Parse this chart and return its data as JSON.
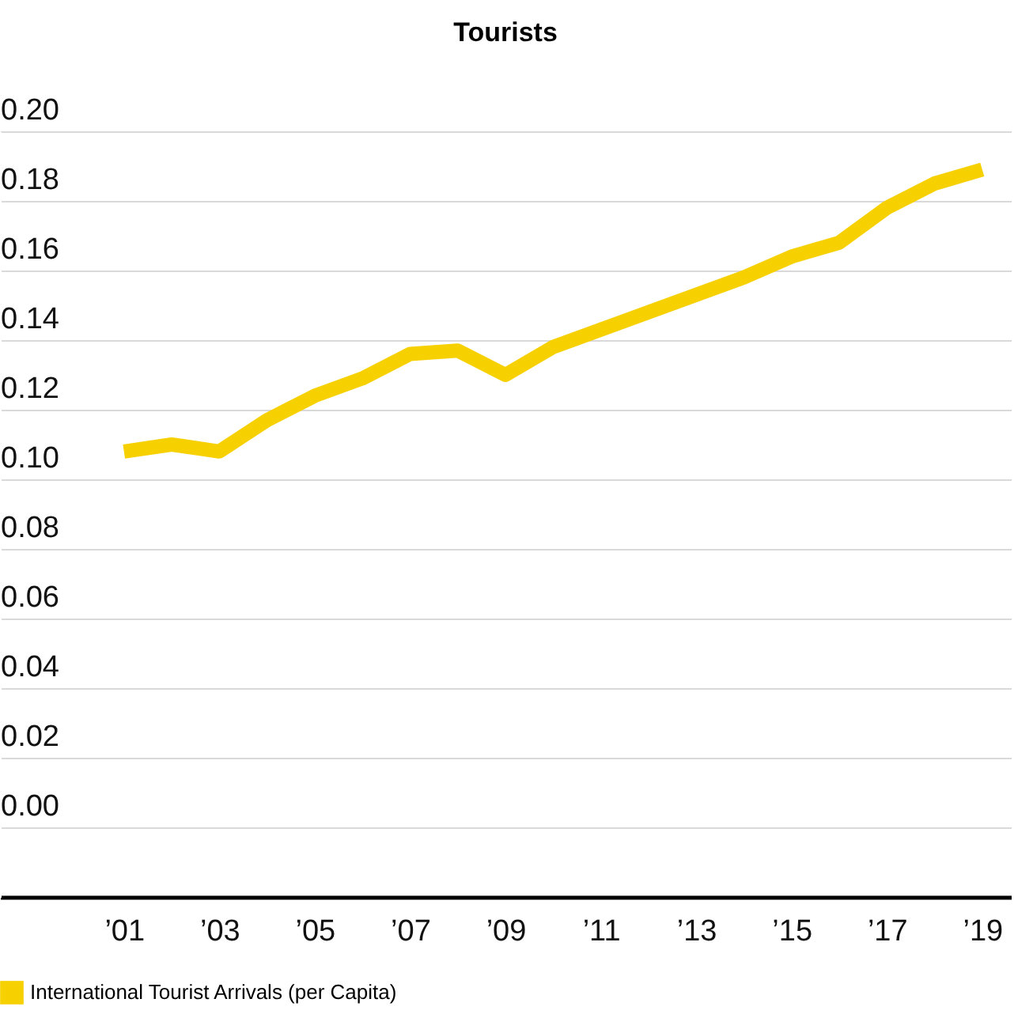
{
  "chart_data": {
    "type": "line",
    "title": "Tourists",
    "x": [
      2001,
      2002,
      2003,
      2004,
      2005,
      2006,
      2007,
      2008,
      2009,
      2010,
      2011,
      2012,
      2013,
      2014,
      2015,
      2016,
      2017,
      2018,
      2019
    ],
    "series": [
      {
        "name": "International Tourist Arrivals (per Capita)",
        "color": "#f7d000",
        "values": [
          0.108,
          0.11,
          0.108,
          0.117,
          0.124,
          0.129,
          0.136,
          0.137,
          0.13,
          0.138,
          0.143,
          0.148,
          0.153,
          0.158,
          0.164,
          0.168,
          0.178,
          0.185,
          0.189
        ]
      }
    ],
    "xlim": [
      1998.4,
      2019.6
    ],
    "xticks": [
      {
        "value": 2001,
        "label": "’01"
      },
      {
        "value": 2003,
        "label": "’03"
      },
      {
        "value": 2005,
        "label": "’05"
      },
      {
        "value": 2007,
        "label": "’07"
      },
      {
        "value": 2009,
        "label": "’09"
      },
      {
        "value": 2011,
        "label": "’11"
      },
      {
        "value": 2013,
        "label": "’13"
      },
      {
        "value": 2015,
        "label": "’15"
      },
      {
        "value": 2017,
        "label": "’17"
      },
      {
        "value": 2019,
        "label": "’19"
      }
    ],
    "ylim": [
      -0.02,
      0.2
    ],
    "yticks": [
      {
        "value": 0,
        "label": "0.00"
      },
      {
        "value": 0.02,
        "label": "0.02"
      },
      {
        "value": 0.04,
        "label": "0.04"
      },
      {
        "value": 0.06,
        "label": "0.06"
      },
      {
        "value": 0.08,
        "label": "0.08"
      },
      {
        "value": 0.1,
        "label": "0.10"
      },
      {
        "value": 0.12,
        "label": "0.12"
      },
      {
        "value": 0.14,
        "label": "0.14"
      },
      {
        "value": 0.16,
        "label": "0.16"
      },
      {
        "value": 0.18,
        "label": "0.18"
      },
      {
        "value": 0.2,
        "label": "0.20"
      }
    ],
    "grid": "y",
    "legend": "bottom left",
    "marker": "none",
    "line_style": "solid"
  }
}
